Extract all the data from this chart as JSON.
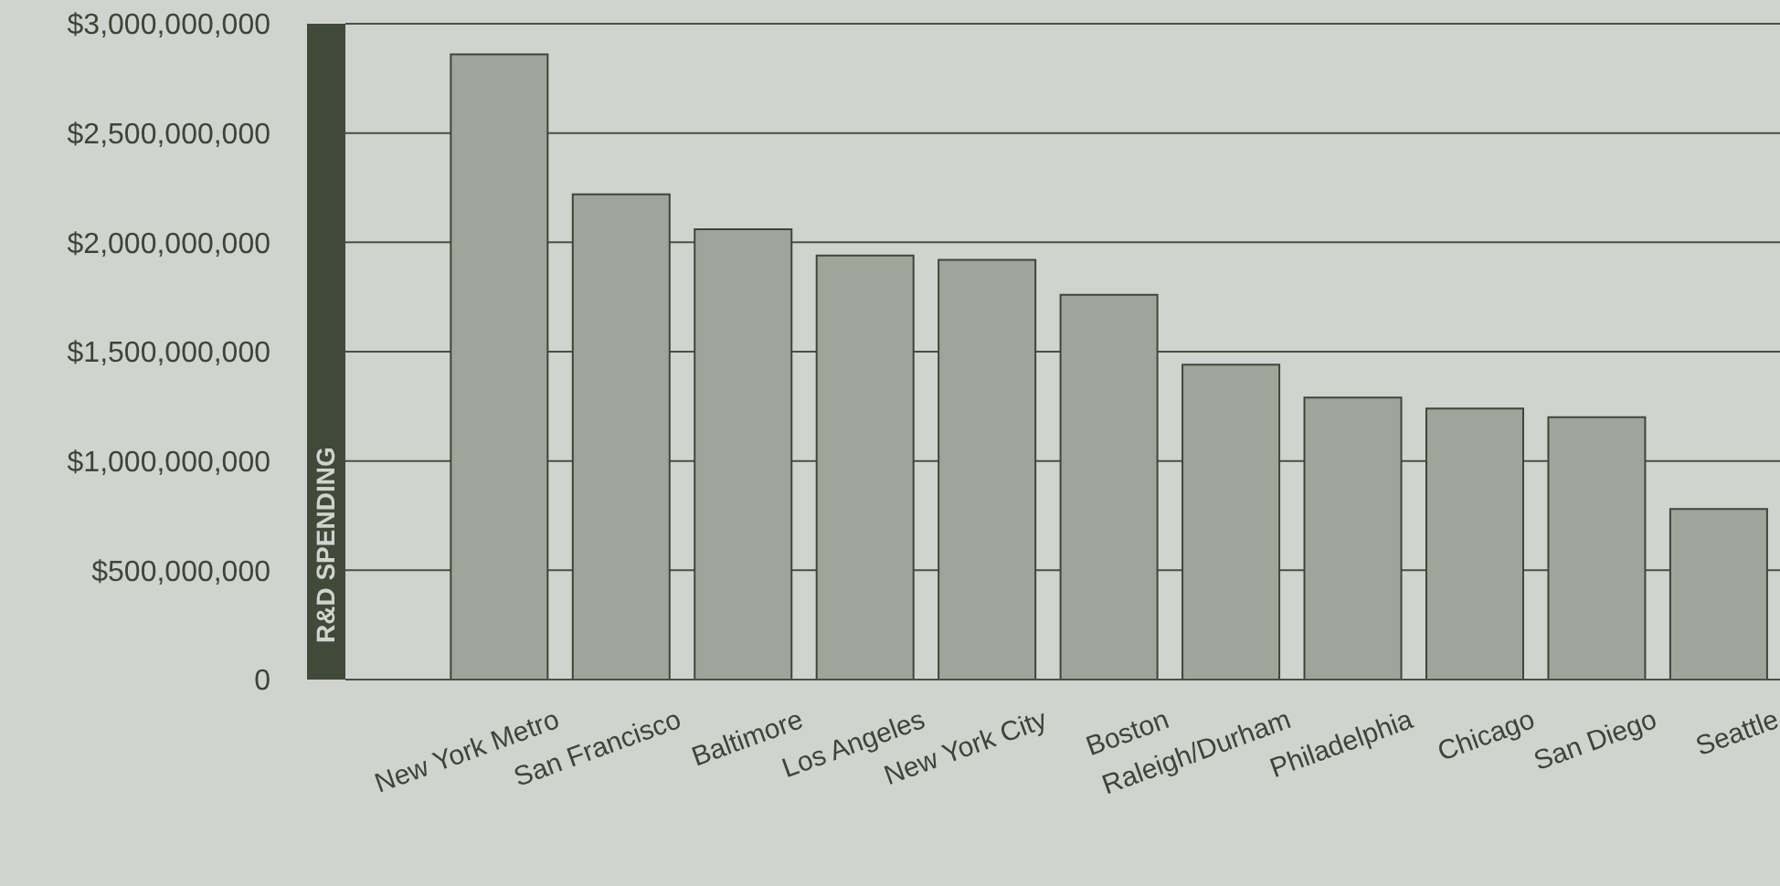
{
  "chart_data": {
    "type": "bar",
    "ylabel": "R&D SPENDING",
    "categories": [
      "New York Metro",
      "San Francisco",
      "Baltimore",
      "Los Angeles",
      "New York City",
      "Boston",
      "Raleigh/Durham",
      "Philadelphia",
      "Chicago",
      "San Diego",
      "Seattle"
    ],
    "values": [
      2860000000,
      2220000000,
      2060000000,
      1940000000,
      1920000000,
      1760000000,
      1440000000,
      1290000000,
      1240000000,
      1200000000,
      780000000
    ],
    "color": "#a0a59c",
    "ylim": [
      0,
      3000000000
    ],
    "yticks": [
      0,
      {
        "value": 500000000,
        "label": "$500,000,000"
      },
      {
        "value": 1000000000,
        "label": "$1,000,000,000"
      },
      {
        "value": 1500000000,
        "label": "$1,500,000,000"
      },
      {
        "value": 2000000000,
        "label": "$2,000,000,000"
      },
      {
        "value": 2500000000,
        "label": "$2,500,000,000"
      },
      {
        "value": 3000000000,
        "label": "$3,000,000,000"
      }
    ],
    "grid": "y",
    "legend": false
  }
}
